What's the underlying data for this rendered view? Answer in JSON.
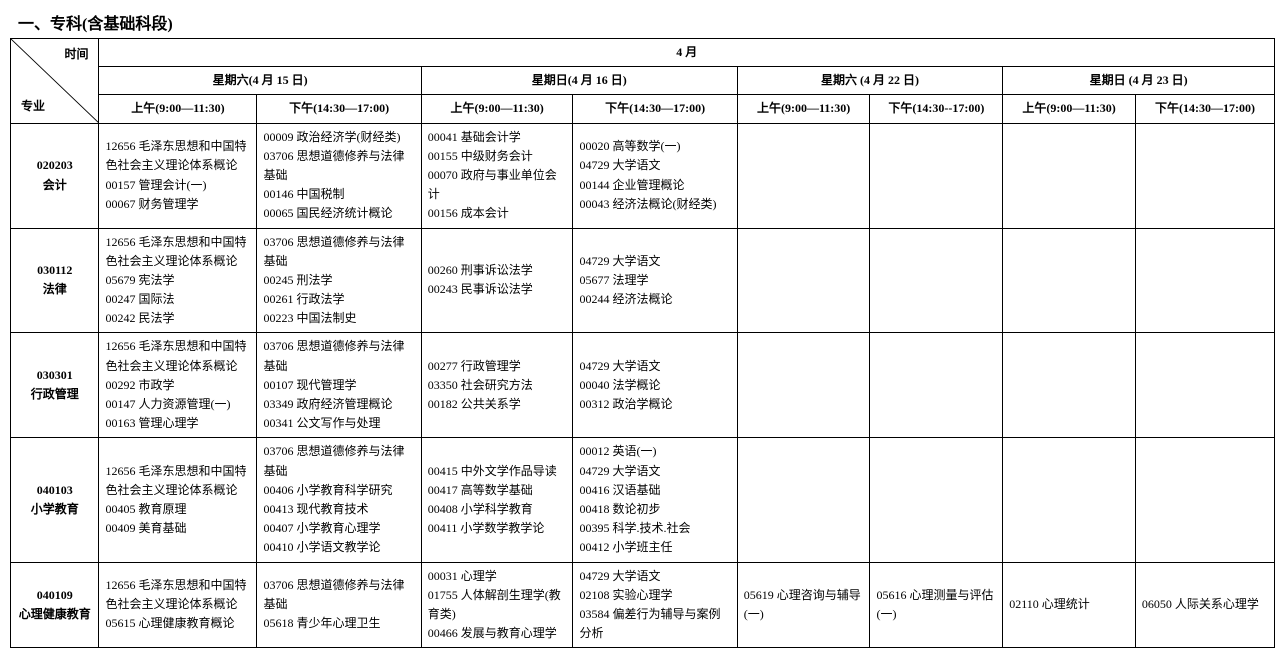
{
  "title": "一、专科(含基础科段)",
  "styling": {
    "type": "table",
    "font_family": "SimSun",
    "body_fontsize": 12,
    "title_fontsize": 16,
    "title_fontweight": "bold",
    "border_color": "#000000",
    "background_color": "#ffffff",
    "text_color": "#000000",
    "line_height": 1.6,
    "cell_padding": "4px 6px",
    "column_widths_pct": [
      7,
      12.5,
      13,
      12,
      13,
      10.5,
      10.5,
      10.5,
      11
    ]
  },
  "header": {
    "diag_time": "时间",
    "diag_major": "专业",
    "month": "4 月",
    "days": [
      {
        "label": "星期六(4 月 15 日)"
      },
      {
        "label": "星期日(4 月 16 日)"
      },
      {
        "label": "星期六 (4 月 22 日)"
      },
      {
        "label": "星期日 (4 月 23 日)"
      }
    ],
    "sessions": [
      {
        "label": "上午(9:00—11:30)"
      },
      {
        "label": "下午(14:30—17:00)"
      },
      {
        "label": "上午(9:00—11:30)"
      },
      {
        "label": "下午(14:30—17:00)"
      },
      {
        "label": "上午(9:00—11:30)"
      },
      {
        "label": "下午(14:30--17:00)"
      },
      {
        "label": "上午(9:00—11:30)"
      },
      {
        "label": "下午(14:30—17:00)"
      }
    ]
  },
  "rows": [
    {
      "major_code": "020203",
      "major_name": "会计",
      "cells": [
        "12656 毛泽东思想和中国特色社会主义理论体系概论\n00157 管理会计(一)\n00067 财务管理学",
        "00009 政治经济学(财经类)\n03706 思想道德修养与法律基础\n00146 中国税制\n00065 国民经济统计概论",
        "00041 基础会计学\n00155 中级财务会计\n00070 政府与事业单位会计\n00156 成本会计",
        "00020 高等数学(一)\n04729 大学语文\n00144 企业管理概论\n00043 经济法概论(财经类)",
        "",
        "",
        "",
        ""
      ]
    },
    {
      "major_code": "030112",
      "major_name": "法律",
      "cells": [
        "12656 毛泽东思想和中国特色社会主义理论体系概论\n05679 宪法学\n00247 国际法\n00242 民法学",
        "03706 思想道德修养与法律基础\n00245 刑法学\n00261 行政法学\n00223 中国法制史",
        "00260 刑事诉讼法学\n00243 民事诉讼法学",
        "04729 大学语文\n05677 法理学\n00244 经济法概论",
        "",
        "",
        "",
        ""
      ]
    },
    {
      "major_code": "030301",
      "major_name": "行政管理",
      "cells": [
        "12656 毛泽东思想和中国特色社会主义理论体系概论\n00292 市政学\n00147 人力资源管理(一)\n00163 管理心理学",
        "03706 思想道德修养与法律基础\n00107 现代管理学\n03349 政府经济管理概论\n00341 公文写作与处理",
        "00277 行政管理学\n03350 社会研究方法\n00182 公共关系学",
        "04729 大学语文\n00040 法学概论\n00312 政治学概论",
        "",
        "",
        "",
        ""
      ]
    },
    {
      "major_code": "040103",
      "major_name": "小学教育",
      "cells": [
        "12656 毛泽东思想和中国特色社会主义理论体系概论\n00405 教育原理\n00409 美育基础",
        "03706 思想道德修养与法律基础\n00406 小学教育科学研究\n00413 现代教育技术\n00407 小学教育心理学\n00410 小学语文教学论",
        "00415 中外文学作品导读\n00417 高等数学基础\n00408 小学科学教育\n00411 小学数学教学论",
        "00012 英语(一)\n04729 大学语文\n00416 汉语基础\n00418 数论初步\n00395 科学.技术.社会\n00412 小学班主任",
        "",
        "",
        "",
        ""
      ]
    },
    {
      "major_code": "040109",
      "major_name": "心理健康教育",
      "cells": [
        "12656 毛泽东思想和中国特色社会主义理论体系概论\n05615 心理健康教育概论",
        "03706 思想道德修养与法律基础\n05618 青少年心理卫生",
        "00031 心理学\n01755 人体解剖生理学(教育类)\n00466 发展与教育心理学",
        "04729 大学语文\n02108 实验心理学\n03584 偏差行为辅导与案例分析",
        "05619 心理咨询与辅导(一)",
        "05616 心理测量与评估(一)",
        "02110 心理统计",
        "06050 人际关系心理学"
      ]
    }
  ]
}
